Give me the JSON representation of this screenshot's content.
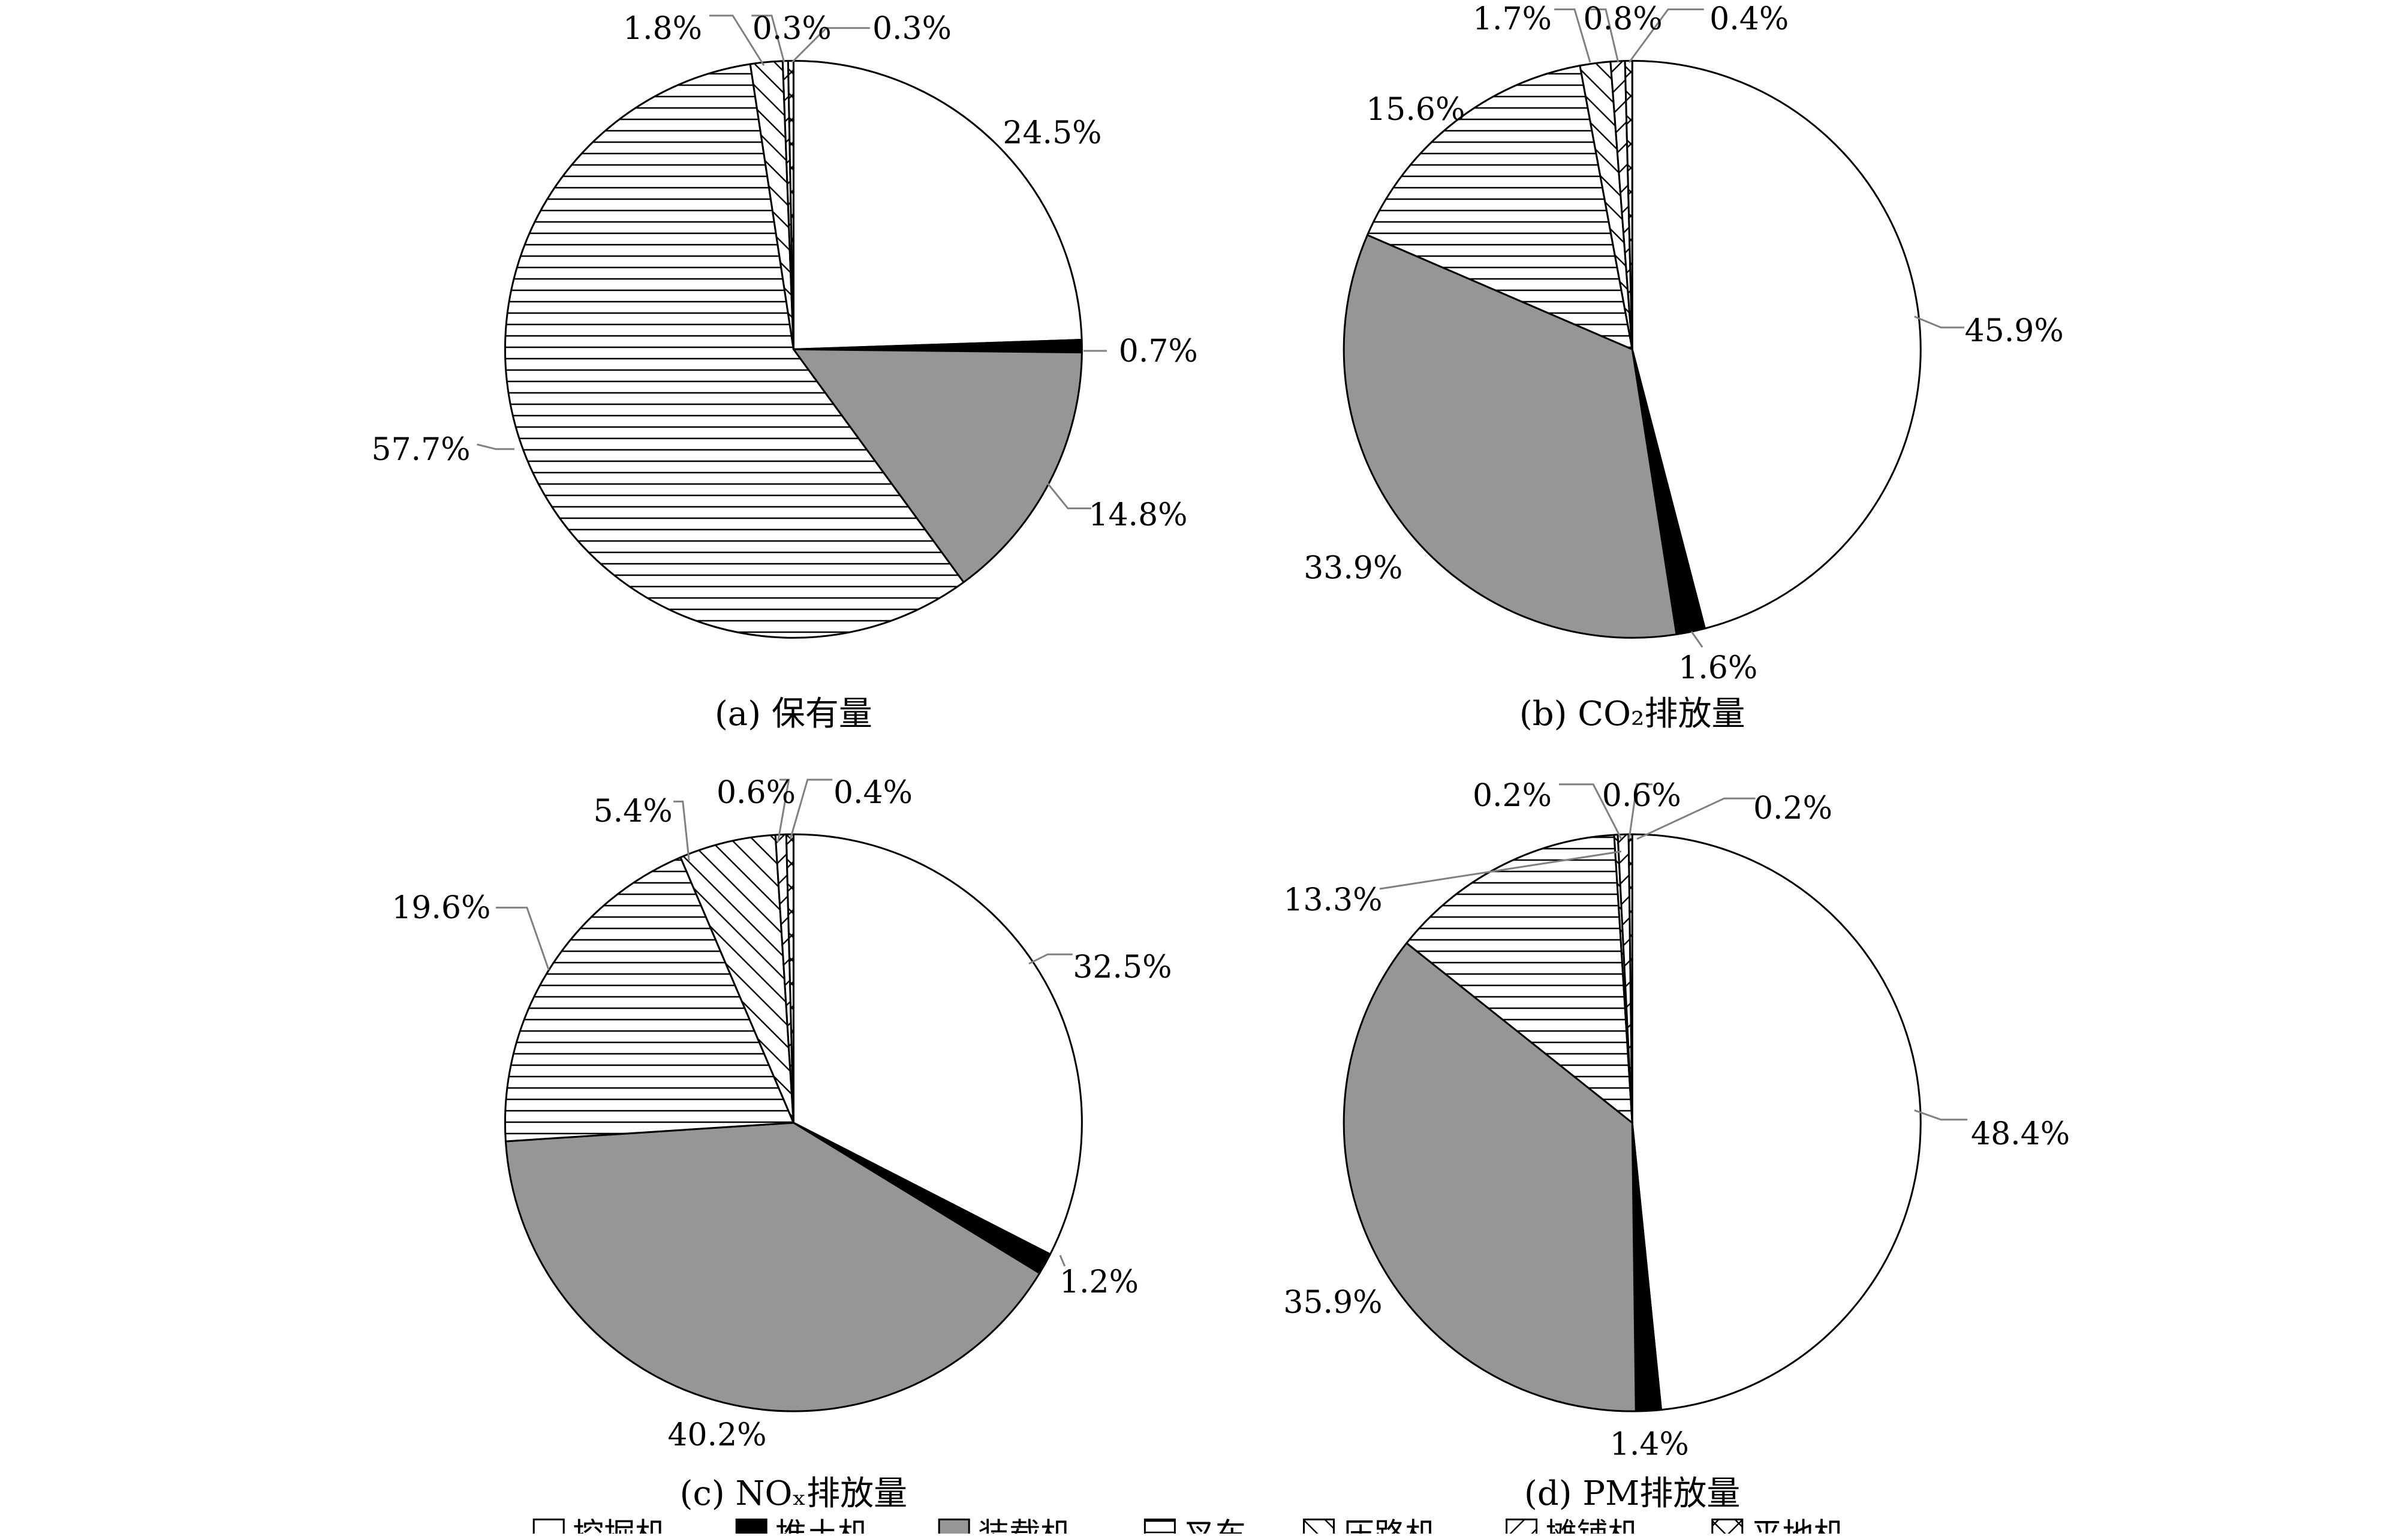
{
  "legend": {
    "position": "bottom",
    "items": [
      {
        "label": "挖掘机",
        "pattern": "white"
      },
      {
        "label": "推土机",
        "pattern": "black"
      },
      {
        "label": "装载机",
        "pattern": "gray"
      },
      {
        "label": "叉车",
        "pattern": "hlines"
      },
      {
        "label": "压路机",
        "pattern": "backslash"
      },
      {
        "label": "摊铺机",
        "pattern": "slash"
      },
      {
        "label": "平地机",
        "pattern": "cross"
      }
    ]
  },
  "colors": {
    "white": "#ffffff",
    "black": "#000000",
    "gray": "#969696",
    "stroke": "#000000",
    "leader": "#808080"
  },
  "chart_data": [
    {
      "type": "pie",
      "title": "(a) 保有量",
      "categories": [
        "挖掘机",
        "推土机",
        "装载机",
        "叉车",
        "压路机",
        "摊铺机",
        "平地机"
      ],
      "values": [
        24.5,
        0.7,
        14.8,
        57.7,
        1.8,
        0.3,
        0.3
      ],
      "labels": [
        "24.5%",
        "0.7%",
        "14.8%",
        "57.7%",
        "1.8%",
        "0.3%",
        "0.3%"
      ]
    },
    {
      "type": "pie",
      "title": "(b) CO₂排放量",
      "categories": [
        "挖掘机",
        "推土机",
        "装载机",
        "叉车",
        "压路机",
        "摊铺机",
        "平地机"
      ],
      "values": [
        45.9,
        1.6,
        33.9,
        15.6,
        1.7,
        0.8,
        0.4
      ],
      "labels": [
        "45.9%",
        "1.6%",
        "33.9%",
        "15.6%",
        "1.7%",
        "0.8%",
        "0.4%"
      ]
    },
    {
      "type": "pie",
      "title": "(c) NOₓ排放量",
      "categories": [
        "挖掘机",
        "推土机",
        "装载机",
        "叉车",
        "压路机",
        "摊铺机",
        "平地机"
      ],
      "values": [
        32.5,
        1.2,
        40.2,
        19.6,
        5.4,
        0.6,
        0.4
      ],
      "labels": [
        "32.5%",
        "1.2%",
        "40.2%",
        "19.6%",
        "5.4%",
        "0.6%",
        "0.4%"
      ]
    },
    {
      "type": "pie",
      "title": "(d) PM排放量",
      "categories": [
        "挖掘机",
        "推土机",
        "装载机",
        "叉车",
        "压路机",
        "摊铺机",
        "平地机"
      ],
      "values": [
        48.4,
        1.4,
        35.9,
        13.3,
        0.2,
        0.6,
        0.2
      ],
      "labels": [
        "48.4%",
        "1.4%",
        "35.9%",
        "13.3%",
        "0.2%",
        "0.6%",
        "0.2%"
      ]
    }
  ]
}
